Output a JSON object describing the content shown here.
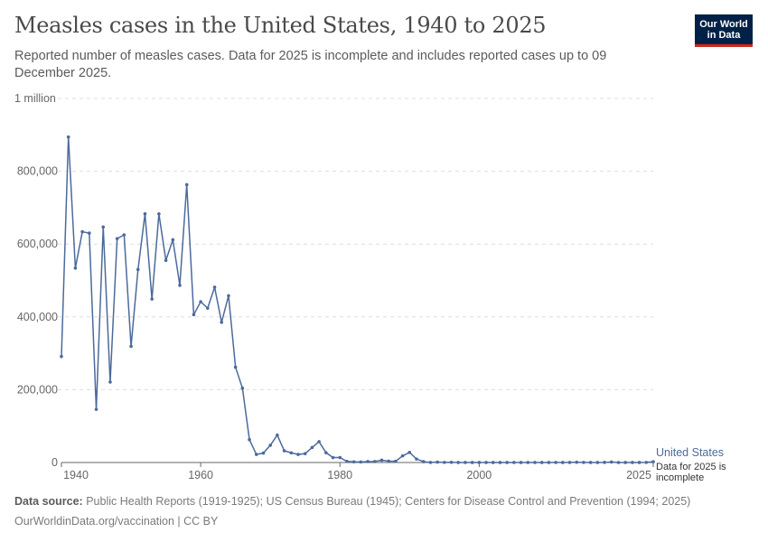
{
  "header": {
    "title": "Measles cases in the United States, 1940 to 2025",
    "subtitle": "Reported number of measles cases. Data for 2025 is incomplete and includes reported cases up to 09 December 2025.",
    "logo_line1": "Our World",
    "logo_line2": "in Data"
  },
  "footer": {
    "source_label": "Data source:",
    "source_text": "Public Health Reports (1919-1925); US Census Bureau (1945); Centers for Disease Control and Prevention (1994; 2025)",
    "url_text": "OurWorldinData.org/vaccination | CC BY"
  },
  "colors": {
    "series": "#4c6a9c",
    "grid": "#dddddd",
    "axis": "#666666",
    "brand": "#002147",
    "brand_accent": "#ce261e"
  },
  "chart_data": {
    "type": "line",
    "x_tick_labels": [
      "1940",
      "1960",
      "1980",
      "2000",
      "2025"
    ],
    "x_ticks": [
      1940,
      1960,
      1980,
      2000,
      2025
    ],
    "y_tick_labels": [
      "0",
      "200,000",
      "400,000",
      "600,000",
      "800,000",
      "1 million"
    ],
    "y_ticks": [
      0,
      200000,
      400000,
      600000,
      800000,
      1000000
    ],
    "xlim": [
      1940,
      2025
    ],
    "ylim": [
      0,
      1000000
    ],
    "grid": "horizontal dashed",
    "annotation": "Data for 2025 is incomplete",
    "series": [
      {
        "name": "United States",
        "x": [
          1940,
          1941,
          1942,
          1943,
          1944,
          1945,
          1946,
          1947,
          1948,
          1949,
          1950,
          1951,
          1952,
          1953,
          1954,
          1955,
          1956,
          1957,
          1958,
          1959,
          1960,
          1961,
          1962,
          1963,
          1964,
          1965,
          1966,
          1967,
          1968,
          1969,
          1970,
          1971,
          1972,
          1973,
          1974,
          1975,
          1976,
          1977,
          1978,
          1979,
          1980,
          1981,
          1982,
          1983,
          1984,
          1985,
          1986,
          1987,
          1988,
          1989,
          1990,
          1991,
          1992,
          1993,
          1994,
          1995,
          1996,
          1997,
          1998,
          1999,
          2000,
          2001,
          2002,
          2003,
          2004,
          2005,
          2006,
          2007,
          2008,
          2009,
          2010,
          2011,
          2012,
          2013,
          2014,
          2015,
          2016,
          2017,
          2018,
          2019,
          2020,
          2021,
          2022,
          2023,
          2024,
          2025
        ],
        "values": [
          291162,
          894134,
          534059,
          633842,
          630000,
          146013,
          647000,
          221000,
          615104,
          625281,
          319124,
          530118,
          683077,
          449000,
          683000,
          555156,
          611936,
          486799,
          763094,
          406162,
          441703,
          423919,
          481530,
          385156,
          458083,
          261904,
          204136,
          62705,
          22231,
          25826,
          47351,
          75290,
          32275,
          26690,
          22094,
          24374,
          41126,
          57345,
          26871,
          13597,
          13506,
          3124,
          1714,
          1497,
          2587,
          2822,
          6282,
          3655,
          3396,
          18193,
          27786,
          9643,
          2237,
          312,
          963,
          309,
          508,
          138,
          100,
          100,
          86,
          116,
          44,
          56,
          37,
          66,
          55,
          43,
          140,
          71,
          63,
          220,
          55,
          187,
          667,
          188,
          86,
          120,
          375,
          1274,
          13,
          49,
          121,
          59,
          285,
          2065
        ]
      }
    ]
  }
}
